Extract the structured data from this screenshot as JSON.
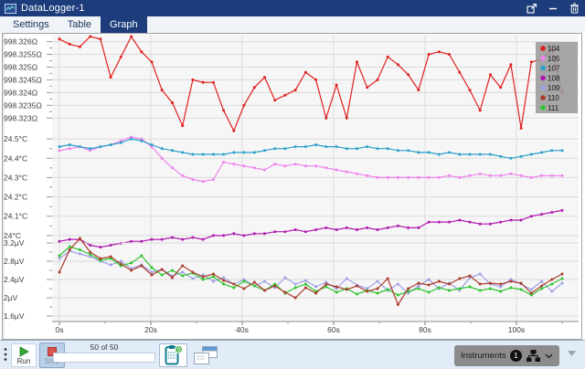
{
  "window": {
    "title": "DataLogger-1"
  },
  "tabs": [
    {
      "label": "Settings",
      "active": false
    },
    {
      "label": "Table",
      "active": false
    },
    {
      "label": "Graph",
      "active": true
    }
  ],
  "toolbar": {
    "run_label": "Run",
    "stop_label": "Stop",
    "progress_label": "50 of 50",
    "instruments_label": "Instruments",
    "instrument_count": "1"
  },
  "chart_data": {
    "type": "line",
    "x_tick_labels": [
      "0s",
      "20s",
      "40s",
      "60s",
      "80s",
      "100s"
    ],
    "x_tick_values": [
      0,
      20,
      40,
      60,
      80,
      100
    ],
    "x_minor_tick_values": [
      10,
      30,
      50,
      70,
      90,
      110
    ],
    "x_interval_s": 2.2449,
    "n_points": 50,
    "legend_position": "top-right",
    "grid": true,
    "legend": [
      {
        "label": "104",
        "color": "#e02020"
      },
      {
        "label": "105",
        "color": "#ee82ee"
      },
      {
        "label": "107",
        "color": "#2b9fc9"
      },
      {
        "label": "108",
        "color": "#b01ab0"
      },
      {
        "label": "109",
        "color": "#9f9fe8"
      },
      {
        "label": "110",
        "color": "#ab3c2b"
      },
      {
        "label": "111",
        "color": "#2ec42e"
      }
    ],
    "sections": [
      {
        "name": "resistance",
        "unit": "Ω",
        "ylim": [
          998.3224,
          998.3262
        ],
        "ticks": [
          {
            "v": 998.326,
            "label": "998.326Ω"
          },
          {
            "v": 998.3255,
            "label": "998.3255Ω"
          },
          {
            "v": 998.325,
            "label": "998.325Ω"
          },
          {
            "v": 998.3245,
            "label": "998.3245Ω"
          },
          {
            "v": 998.324,
            "label": "998.324Ω"
          },
          {
            "v": 998.3235,
            "label": "998.3235Ω"
          },
          {
            "v": 998.323,
            "label": "998.323Ω"
          }
        ],
        "series": [
          {
            "name": "104",
            "color": "#e02020",
            "values": [
              998.3261,
              998.3259,
              998.3258,
              998.3262,
              998.3261,
              998.3246,
              998.3254,
              998.3262,
              998.3256,
              998.3252,
              998.3241,
              998.3236,
              998.3227,
              998.3245,
              998.3244,
              998.3244,
              998.3233,
              998.3225,
              998.3235,
              998.3242,
              998.3246,
              998.3237,
              998.3239,
              998.3241,
              998.3248,
              998.3245,
              998.323,
              998.3243,
              998.323,
              998.3252,
              998.3242,
              998.3245,
              998.3254,
              998.3251,
              998.3247,
              998.3241,
              998.3255,
              998.3256,
              998.3255,
              998.3248,
              998.3241,
              998.3233,
              998.3247,
              998.3242,
              998.3251,
              998.3226,
              998.3252,
              998.3253,
              998.3257,
              998.324
            ]
          }
        ]
      },
      {
        "name": "temperature",
        "unit": "°C",
        "ylim": [
          23.99,
          24.51
        ],
        "ticks": [
          {
            "v": 24.5,
            "label": "24.5°C"
          },
          {
            "v": 24.4,
            "label": "24.4°C"
          },
          {
            "v": 24.3,
            "label": "24.3°C"
          },
          {
            "v": 24.2,
            "label": "24.2°C"
          },
          {
            "v": 24.1,
            "label": "24.1°C"
          },
          {
            "v": 24.0,
            "label": "24°C"
          }
        ],
        "series": [
          {
            "name": "105",
            "color": "#ee82ee",
            "values": [
              24.44,
              24.45,
              24.46,
              24.44,
              24.46,
              24.47,
              24.49,
              24.51,
              24.5,
              24.46,
              24.4,
              24.35,
              24.31,
              24.29,
              24.28,
              24.29,
              24.38,
              24.37,
              24.36,
              24.35,
              24.34,
              24.37,
              24.36,
              24.37,
              24.36,
              24.36,
              24.35,
              24.34,
              24.33,
              24.32,
              24.31,
              24.3,
              24.3,
              24.3,
              24.3,
              24.3,
              24.3,
              24.3,
              24.31,
              24.3,
              24.31,
              24.32,
              24.31,
              24.31,
              24.32,
              24.31,
              24.3,
              24.31,
              24.31,
              24.31
            ]
          },
          {
            "name": "107",
            "color": "#2b9fc9",
            "values": [
              24.46,
              24.47,
              24.46,
              24.45,
              24.46,
              24.47,
              24.48,
              24.5,
              24.49,
              24.47,
              24.45,
              24.44,
              24.43,
              24.42,
              24.42,
              24.42,
              24.42,
              24.43,
              24.43,
              24.43,
              24.44,
              24.45,
              24.45,
              24.46,
              24.46,
              24.47,
              24.46,
              24.46,
              24.45,
              24.45,
              24.46,
              24.45,
              24.45,
              24.44,
              24.44,
              24.43,
              24.43,
              24.42,
              24.43,
              24.42,
              24.42,
              24.42,
              24.42,
              24.41,
              24.4,
              24.41,
              24.42,
              24.43,
              24.44,
              24.44
            ]
          },
          {
            "name": "108",
            "color": "#b01ab0",
            "values": [
              23.97,
              23.98,
              23.98,
              23.95,
              23.94,
              23.95,
              23.96,
              23.97,
              23.97,
              23.98,
              23.98,
              23.99,
              23.98,
              23.99,
              23.98,
              24.0,
              24.0,
              24.01,
              24.0,
              24.01,
              24.01,
              24.02,
              24.02,
              24.03,
              24.02,
              24.03,
              24.04,
              24.03,
              24.04,
              24.03,
              24.04,
              24.03,
              24.04,
              24.05,
              24.04,
              24.04,
              24.07,
              24.07,
              24.07,
              24.08,
              24.07,
              24.06,
              24.06,
              24.07,
              24.08,
              24.08,
              24.1,
              24.11,
              24.12,
              24.13
            ]
          }
        ]
      },
      {
        "name": "voltage",
        "unit": "µV",
        "ylim": [
          1.48,
          3.28
        ],
        "ticks": [
          {
            "v": 3.2,
            "label": "3.2µV"
          },
          {
            "v": 2.8,
            "label": "2.8µV"
          },
          {
            "v": 2.4,
            "label": "2.4µV"
          },
          {
            "v": 2.0,
            "label": "2µV"
          },
          {
            "v": 1.6,
            "label": "1.6µV"
          }
        ],
        "series": [
          {
            "name": "109",
            "color": "#9f9fe8",
            "values": [
              2.86,
              3.02,
              2.96,
              2.9,
              2.8,
              2.72,
              2.8,
              2.64,
              2.72,
              2.56,
              2.62,
              2.48,
              2.56,
              2.42,
              2.5,
              2.36,
              2.44,
              2.3,
              2.4,
              2.26,
              2.36,
              2.22,
              2.44,
              2.3,
              2.38,
              2.24,
              2.34,
              2.2,
              2.42,
              2.28,
              2.2,
              2.36,
              2.16,
              2.3,
              2.1,
              2.26,
              2.4,
              2.2,
              2.32,
              2.16,
              2.44,
              2.52,
              2.3,
              2.24,
              2.4,
              2.3,
              2.18,
              2.36,
              2.14,
              2.32
            ]
          },
          {
            "name": "111",
            "color": "#2ec42e",
            "values": [
              2.92,
              3.12,
              3.05,
              2.95,
              2.82,
              2.86,
              2.7,
              2.76,
              2.92,
              2.66,
              2.5,
              2.6,
              2.48,
              2.54,
              2.4,
              2.46,
              2.3,
              2.22,
              2.36,
              2.26,
              2.16,
              2.3,
              2.1,
              2.22,
              2.3,
              2.14,
              2.24,
              2.12,
              2.2,
              2.08,
              2.16,
              2.1,
              2.18,
              2.06,
              2.14,
              2.2,
              2.12,
              2.22,
              2.16,
              2.2,
              2.24,
              2.16,
              2.2,
              2.14,
              2.22,
              2.18,
              2.06,
              2.2,
              2.3,
              2.42
            ]
          },
          {
            "name": "110",
            "color": "#ab3c2b",
            "values": [
              2.56,
              3.05,
              3.3,
              3.0,
              2.86,
              2.9,
              2.74,
              2.6,
              2.7,
              2.5,
              2.62,
              2.44,
              2.7,
              2.56,
              2.46,
              2.52,
              2.38,
              2.3,
              2.2,
              2.34,
              2.16,
              2.26,
              2.12,
              2.0,
              2.22,
              2.1,
              2.3,
              2.24,
              2.18,
              2.26,
              2.14,
              2.2,
              2.42,
              1.85,
              2.2,
              2.32,
              2.28,
              2.36,
              2.3,
              2.42,
              2.48,
              2.3,
              2.32,
              2.3,
              2.36,
              2.32,
              2.1,
              2.26,
              2.4,
              2.52
            ]
          }
        ]
      }
    ]
  }
}
